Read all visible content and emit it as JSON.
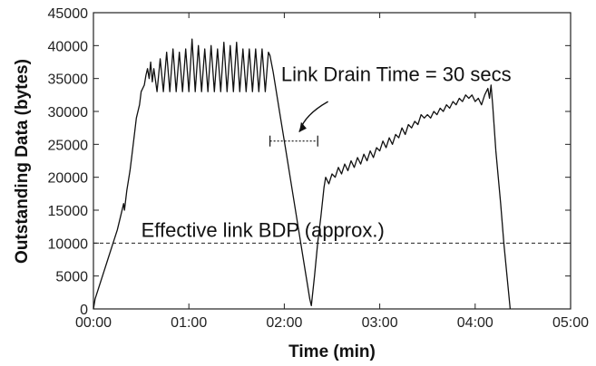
{
  "chart_data": {
    "type": "line",
    "xlabel": "Time (min)",
    "ylabel": "Outstanding Data (bytes)",
    "xlim": [
      0,
      300
    ],
    "ylim": [
      0,
      45000
    ],
    "x_ticks": [
      {
        "value": 0,
        "label": "00:00"
      },
      {
        "value": 60,
        "label": "01:00"
      },
      {
        "value": 120,
        "label": "02:00"
      },
      {
        "value": 180,
        "label": "03:00"
      },
      {
        "value": 240,
        "label": "04:00"
      },
      {
        "value": 300,
        "label": "05:00"
      }
    ],
    "y_ticks": [
      0,
      5000,
      10000,
      15000,
      20000,
      25000,
      30000,
      35000,
      40000,
      45000
    ],
    "grid": false,
    "series": [
      {
        "color": "#111111",
        "points": [
          [
            0,
            0
          ],
          [
            1,
            1500
          ],
          [
            3,
            3000
          ],
          [
            5,
            4500
          ],
          [
            7,
            6000
          ],
          [
            9,
            7500
          ],
          [
            11,
            9000
          ],
          [
            13,
            10500
          ],
          [
            15,
            12000
          ],
          [
            17,
            14000
          ],
          [
            19,
            16000
          ],
          [
            19.5,
            15000
          ],
          [
            21,
            18000
          ],
          [
            23,
            21000
          ],
          [
            24,
            23000
          ],
          [
            26,
            27000
          ],
          [
            27,
            29000
          ],
          [
            29,
            31000
          ],
          [
            30,
            33000
          ],
          [
            32,
            34000
          ],
          [
            33,
            35500
          ],
          [
            34,
            36500
          ],
          [
            35,
            35000
          ],
          [
            36,
            37500
          ],
          [
            37,
            34500
          ],
          [
            38,
            36500
          ],
          [
            40,
            33000
          ],
          [
            42,
            38000
          ],
          [
            44,
            33000
          ],
          [
            46,
            39000
          ],
          [
            48,
            33000
          ],
          [
            50,
            39500
          ],
          [
            52,
            33000
          ],
          [
            54,
            39000
          ],
          [
            56,
            33000
          ],
          [
            58,
            39500
          ],
          [
            60,
            33000
          ],
          [
            62,
            41000
          ],
          [
            64,
            33000
          ],
          [
            66,
            40000
          ],
          [
            68,
            33000
          ],
          [
            70,
            39500
          ],
          [
            72,
            33000
          ],
          [
            74,
            40000
          ],
          [
            76,
            33000
          ],
          [
            78,
            39500
          ],
          [
            80,
            33000
          ],
          [
            82,
            40500
          ],
          [
            84,
            33000
          ],
          [
            86,
            40000
          ],
          [
            88,
            33000
          ],
          [
            90,
            40500
          ],
          [
            92,
            33000
          ],
          [
            94,
            39500
          ],
          [
            96,
            33000
          ],
          [
            98,
            39500
          ],
          [
            100,
            33000
          ],
          [
            102,
            39500
          ],
          [
            104,
            33000
          ],
          [
            106,
            39500
          ],
          [
            108,
            33000
          ],
          [
            110,
            39000
          ],
          [
            111,
            38500
          ],
          [
            113,
            36000
          ],
          [
            117,
            30000
          ],
          [
            121,
            24000
          ],
          [
            125,
            18000
          ],
          [
            129,
            12000
          ],
          [
            133,
            6000
          ],
          [
            136,
            1500
          ],
          [
            137,
            500
          ],
          [
            139,
            5000
          ],
          [
            141,
            10000
          ],
          [
            143,
            14000
          ],
          [
            145,
            18500
          ],
          [
            146,
            20000
          ],
          [
            148,
            19000
          ],
          [
            150,
            20500
          ],
          [
            152,
            20000
          ],
          [
            154,
            21500
          ],
          [
            156,
            20500
          ],
          [
            158,
            22000
          ],
          [
            160,
            21000
          ],
          [
            162,
            22500
          ],
          [
            164,
            21500
          ],
          [
            166,
            23000
          ],
          [
            168,
            22000
          ],
          [
            170,
            23500
          ],
          [
            172,
            22500
          ],
          [
            174,
            24000
          ],
          [
            176,
            23000
          ],
          [
            178,
            24500
          ],
          [
            180,
            24000
          ],
          [
            182,
            25500
          ],
          [
            184,
            24500
          ],
          [
            186,
            26000
          ],
          [
            188,
            25000
          ],
          [
            190,
            26500
          ],
          [
            192,
            26000
          ],
          [
            194,
            27500
          ],
          [
            196,
            26500
          ],
          [
            198,
            28000
          ],
          [
            200,
            27500
          ],
          [
            202,
            28500
          ],
          [
            204,
            28000
          ],
          [
            206,
            29500
          ],
          [
            208,
            29000
          ],
          [
            210,
            29500
          ],
          [
            212,
            29000
          ],
          [
            214,
            30000
          ],
          [
            216,
            29500
          ],
          [
            218,
            30500
          ],
          [
            220,
            30000
          ],
          [
            222,
            31000
          ],
          [
            224,
            30500
          ],
          [
            226,
            31500
          ],
          [
            228,
            31000
          ],
          [
            230,
            32000
          ],
          [
            232,
            31500
          ],
          [
            234,
            32500
          ],
          [
            236,
            32000
          ],
          [
            238,
            32500
          ],
          [
            240,
            31500
          ],
          [
            242,
            32000
          ],
          [
            244,
            31000
          ],
          [
            246,
            32500
          ],
          [
            248,
            33500
          ],
          [
            249,
            32000
          ],
          [
            250,
            34000
          ],
          [
            251,
            31000
          ],
          [
            253,
            24000
          ],
          [
            256,
            16000
          ],
          [
            258,
            10000
          ],
          [
            260,
            5000
          ],
          [
            262,
            0
          ]
        ]
      }
    ],
    "reference_lines": [
      {
        "y": 10000,
        "style": "dashed",
        "label": "Effective link BDP (approx.)"
      }
    ],
    "annotations": [
      {
        "text": "Link Drain Time = 30 secs",
        "span_x": [
          111,
          141
        ],
        "y": 25500
      }
    ]
  }
}
